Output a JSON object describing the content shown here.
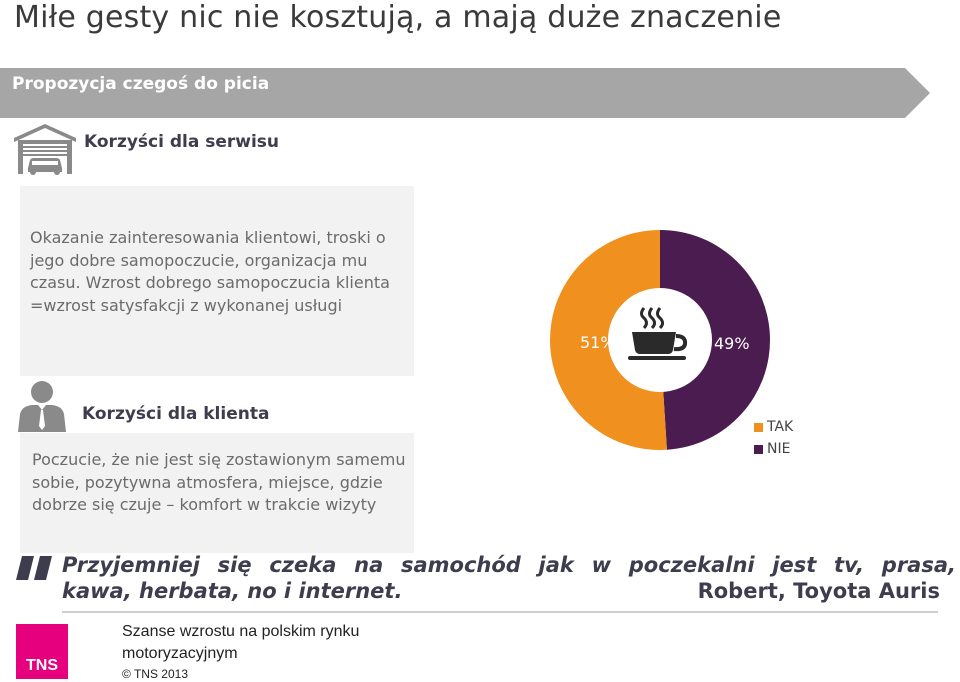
{
  "title": "Miłe gesty nic nie kosztują, a mają duże znaczenie",
  "banner": {
    "label": "Propozycja czegoś do picia",
    "color": "#a6a6a6"
  },
  "service": {
    "heading": "Korzyści dla serwisu",
    "icon": "garage-icon",
    "text": "Okazanie zainteresowania klientowi, troski o jego dobre samopoczucie, organizacja mu czasu. Wzrost dobrego samopoczucia klienta =wzrost satysfakcji z wykonanej usługi"
  },
  "client": {
    "heading": "Korzyści dla klienta",
    "icon": "person-icon",
    "text": "Poczucie, że nie jest się zostawionym samemu sobie, pozytywna atmosfera, miejsce, gdzie dobrze się czuje – komfort w trakcie wizyty"
  },
  "chart_data": {
    "type": "pie",
    "title": "",
    "categories": [
      "TAK",
      "NIE"
    ],
    "values": [
      51,
      49
    ],
    "labels": [
      "51%",
      "49%"
    ],
    "colors": [
      "#f0901e",
      "#4b1c4f"
    ],
    "center_icon": "coffee-cup-icon",
    "legend_position": "bottom-right"
  },
  "quote": {
    "line1": "Przyjemniej się czeka na samochód jak w poczekalni jest tv, prasa,",
    "line2": "kawa, herbata, no i internet.",
    "author": "Robert, Toyota Auris"
  },
  "footer": {
    "logo": "TNS",
    "line1": "Szanse wzrostu na polskim rynku",
    "line2": "motoryzacyjnym",
    "copyright": "© TNS   2013"
  }
}
